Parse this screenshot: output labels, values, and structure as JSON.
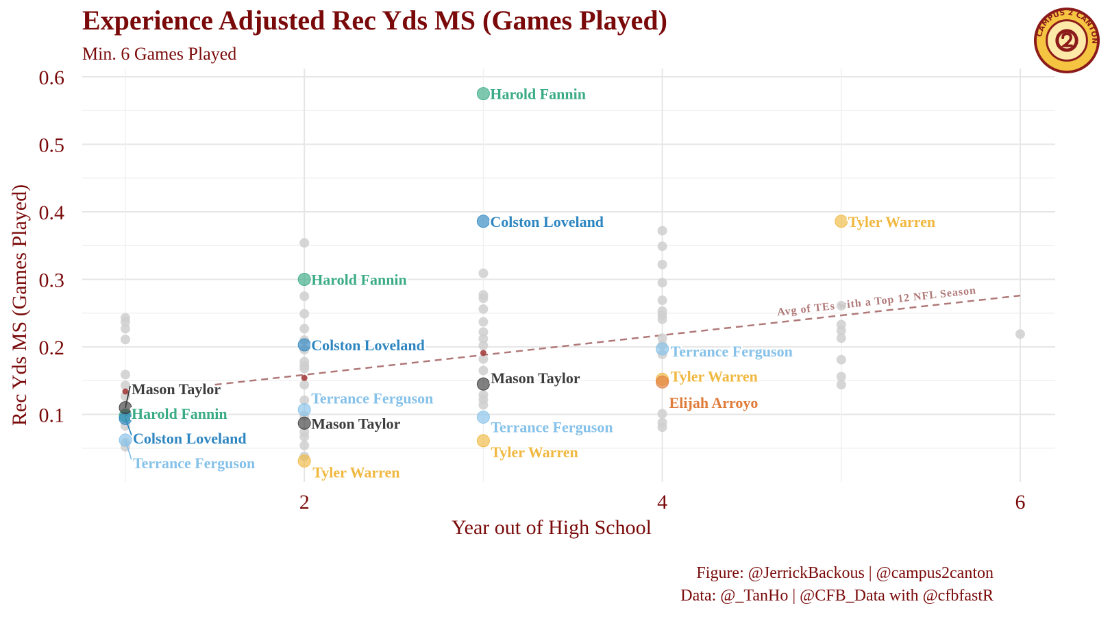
{
  "header": {
    "title": "Experience Adjusted Rec Yds MS (Games Played)",
    "subtitle": "Min. 6 Games Played"
  },
  "caption": {
    "line1": "Figure: @JerrickBackous | @campus2canton",
    "line2": "Data: @_TanHo | @CFB_Data with @cfbfastR"
  },
  "logo": {
    "icon": "campus-2-canton-logo",
    "text": "CAMPUS 2 CANTON",
    "colors": {
      "ring": "#f5c542",
      "fill": "#fde9a8",
      "border": "#8b1a1a"
    }
  },
  "chart_data": {
    "type": "scatter",
    "xlabel": "Year out of High School",
    "ylabel": "Rec Yds MS (Games Played)",
    "xlim": [
      0.75,
      6.3
    ],
    "ylim": [
      0.0,
      0.6
    ],
    "xticks": [
      2,
      4,
      6
    ],
    "yticks": [
      0.1,
      0.2,
      0.3,
      0.4,
      0.5,
      0.6
    ],
    "grid": true,
    "colors": {
      "background_points": "#cfcfcf",
      "Harold Fannin": "#3aab86",
      "Colston Loveland": "#2e86c1",
      "Mason Taylor": "#3c3c3c",
      "Terrance Ferguson": "#85c1e9",
      "Tyler Warren": "#f0b840",
      "Elijah Arroyo": "#e07b39",
      "trend": "#b07878",
      "benchmark_points": "#a03232"
    },
    "background_points": [
      {
        "x": 1,
        "y": 0.243
      },
      {
        "x": 1,
        "y": 0.237
      },
      {
        "x": 1,
        "y": 0.227
      },
      {
        "x": 1,
        "y": 0.211
      },
      {
        "x": 1,
        "y": 0.159
      },
      {
        "x": 1,
        "y": 0.143
      },
      {
        "x": 1,
        "y": 0.127
      },
      {
        "x": 1,
        "y": 0.103
      },
      {
        "x": 1,
        "y": 0.083
      },
      {
        "x": 1,
        "y": 0.058
      },
      {
        "x": 1,
        "y": 0.052
      },
      {
        "x": 2,
        "y": 0.354
      },
      {
        "x": 2,
        "y": 0.275
      },
      {
        "x": 2,
        "y": 0.249
      },
      {
        "x": 2,
        "y": 0.227
      },
      {
        "x": 2,
        "y": 0.21
      },
      {
        "x": 2,
        "y": 0.196
      },
      {
        "x": 2,
        "y": 0.178
      },
      {
        "x": 2,
        "y": 0.172
      },
      {
        "x": 2,
        "y": 0.168
      },
      {
        "x": 2,
        "y": 0.144
      },
      {
        "x": 2,
        "y": 0.121
      },
      {
        "x": 2,
        "y": 0.098
      },
      {
        "x": 2,
        "y": 0.074
      },
      {
        "x": 2,
        "y": 0.067
      },
      {
        "x": 2,
        "y": 0.054
      },
      {
        "x": 2,
        "y": 0.038
      },
      {
        "x": 3,
        "y": 0.309
      },
      {
        "x": 3,
        "y": 0.277
      },
      {
        "x": 3,
        "y": 0.272
      },
      {
        "x": 3,
        "y": 0.256
      },
      {
        "x": 3,
        "y": 0.237
      },
      {
        "x": 3,
        "y": 0.222
      },
      {
        "x": 3,
        "y": 0.212
      },
      {
        "x": 3,
        "y": 0.202
      },
      {
        "x": 3,
        "y": 0.182
      },
      {
        "x": 3,
        "y": 0.165
      },
      {
        "x": 3,
        "y": 0.129
      },
      {
        "x": 3,
        "y": 0.122
      },
      {
        "x": 3,
        "y": 0.114
      },
      {
        "x": 4,
        "y": 0.372
      },
      {
        "x": 4,
        "y": 0.349
      },
      {
        "x": 4,
        "y": 0.322
      },
      {
        "x": 4,
        "y": 0.295
      },
      {
        "x": 4,
        "y": 0.269
      },
      {
        "x": 4,
        "y": 0.253
      },
      {
        "x": 4,
        "y": 0.247
      },
      {
        "x": 4,
        "y": 0.241
      },
      {
        "x": 4,
        "y": 0.213
      },
      {
        "x": 4,
        "y": 0.203
      },
      {
        "x": 4,
        "y": 0.189
      },
      {
        "x": 4,
        "y": 0.101
      },
      {
        "x": 4,
        "y": 0.088
      },
      {
        "x": 4,
        "y": 0.081
      },
      {
        "x": 5,
        "y": 0.261
      },
      {
        "x": 5,
        "y": 0.233
      },
      {
        "x": 5,
        "y": 0.224
      },
      {
        "x": 5,
        "y": 0.213
      },
      {
        "x": 5,
        "y": 0.181
      },
      {
        "x": 5,
        "y": 0.156
      },
      {
        "x": 5,
        "y": 0.144
      },
      {
        "x": 6,
        "y": 0.219
      }
    ],
    "benchmark_points": [
      {
        "x": 1,
        "y": 0.134
      },
      {
        "x": 2,
        "y": 0.154
      },
      {
        "x": 3,
        "y": 0.191
      }
    ],
    "trend_line": {
      "label": "Avg of TEs with a Top 12 NFL Season",
      "x": [
        1.5,
        6
      ],
      "y": [
        0.144,
        0.276
      ]
    },
    "series": [
      {
        "name": "Harold Fannin",
        "points": [
          {
            "x": 1,
            "y": 0.098
          },
          {
            "x": 2,
            "y": 0.3
          },
          {
            "x": 3,
            "y": 0.575
          }
        ]
      },
      {
        "name": "Colston Loveland",
        "points": [
          {
            "x": 1,
            "y": 0.094
          },
          {
            "x": 2,
            "y": 0.203
          },
          {
            "x": 3,
            "y": 0.386
          }
        ]
      },
      {
        "name": "Mason Taylor",
        "points": [
          {
            "x": 1,
            "y": 0.11
          },
          {
            "x": 2,
            "y": 0.087
          },
          {
            "x": 3,
            "y": 0.145
          }
        ]
      },
      {
        "name": "Terrance Ferguson",
        "points": [
          {
            "x": 1,
            "y": 0.062
          },
          {
            "x": 2,
            "y": 0.107
          },
          {
            "x": 3,
            "y": 0.096
          },
          {
            "x": 4,
            "y": 0.197
          }
        ]
      },
      {
        "name": "Tyler Warren",
        "points": [
          {
            "x": 2,
            "y": 0.031
          },
          {
            "x": 3,
            "y": 0.061
          },
          {
            "x": 4,
            "y": 0.152
          },
          {
            "x": 5,
            "y": 0.386
          }
        ]
      },
      {
        "name": "Elijah Arroyo",
        "points": [
          {
            "x": 4,
            "y": 0.148
          }
        ]
      }
    ]
  }
}
